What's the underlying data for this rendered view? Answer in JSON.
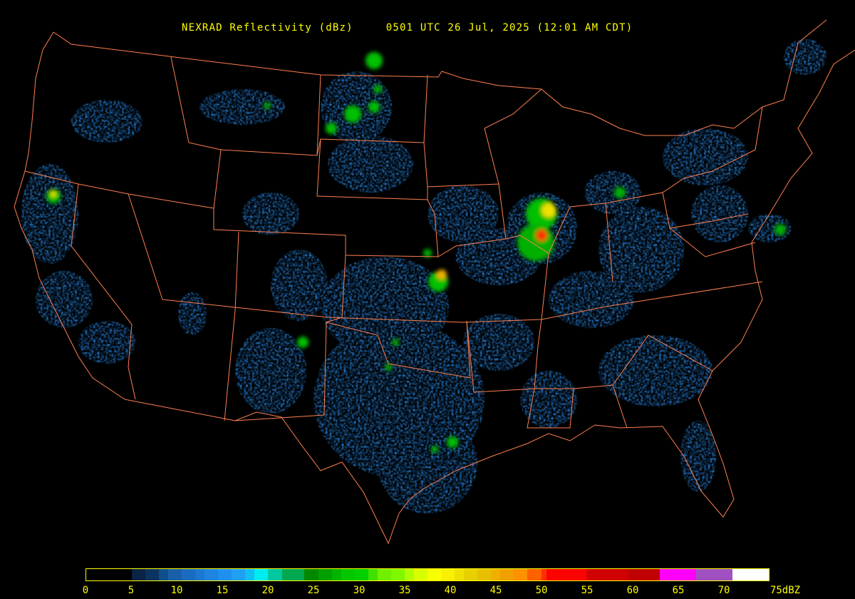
{
  "header": {
    "product": "NEXRAD Reflectivity (dBz)",
    "timestamp": "0501 UTC 26 Jul, 2025 (12:01 AM CDT)"
  },
  "colors": {
    "background": "#000000",
    "boundaries": "#ff7f50",
    "text": "#ffff00"
  },
  "legend": {
    "unit": "dBZ",
    "min": 0,
    "max": 75,
    "tick_labels": [
      "0",
      "5",
      "10",
      "15",
      "20",
      "25",
      "30",
      "35",
      "40",
      "45",
      "50",
      "55",
      "60",
      "65",
      "70",
      "75dBZ"
    ],
    "stops": [
      {
        "dbz": 0,
        "color": "#000000"
      },
      {
        "dbz": 5,
        "color": "#0a2444"
      },
      {
        "dbz": 6.5,
        "color": "#0c3462"
      },
      {
        "dbz": 8,
        "color": "#10508a"
      },
      {
        "dbz": 9,
        "color": "#1860a8"
      },
      {
        "dbz": 10.5,
        "color": "#1a6cc0"
      },
      {
        "dbz": 12,
        "color": "#1c78d0"
      },
      {
        "dbz": 13,
        "color": "#1e84e0"
      },
      {
        "dbz": 14.5,
        "color": "#2090f0"
      },
      {
        "dbz": 16,
        "color": "#20a0f0"
      },
      {
        "dbz": 17.5,
        "color": "#10c0f0"
      },
      {
        "dbz": 18.5,
        "color": "#00ecf0"
      },
      {
        "dbz": 20,
        "color": "#00c8a0"
      },
      {
        "dbz": 21.5,
        "color": "#00a850"
      },
      {
        "dbz": 24,
        "color": "#008800"
      },
      {
        "dbz": 25.5,
        "color": "#00a000"
      },
      {
        "dbz": 27,
        "color": "#00b400"
      },
      {
        "dbz": 28,
        "color": "#00c800"
      },
      {
        "dbz": 29.5,
        "color": "#00d000"
      },
      {
        "dbz": 31,
        "color": "#40e000"
      },
      {
        "dbz": 32,
        "color": "#70f000"
      },
      {
        "dbz": 33.5,
        "color": "#80f800"
      },
      {
        "dbz": 35,
        "color": "#b0ff00"
      },
      {
        "dbz": 36,
        "color": "#d8ff00"
      },
      {
        "dbz": 37.5,
        "color": "#f8ff00"
      },
      {
        "dbz": 39,
        "color": "#f8f000"
      },
      {
        "dbz": 40.5,
        "color": "#f0e000"
      },
      {
        "dbz": 41.5,
        "color": "#e8d000"
      },
      {
        "dbz": 43,
        "color": "#e8c000"
      },
      {
        "dbz": 44.5,
        "color": "#f0b000"
      },
      {
        "dbz": 45.5,
        "color": "#f0a000"
      },
      {
        "dbz": 47,
        "color": "#ff9000"
      },
      {
        "dbz": 48.5,
        "color": "#ff6000"
      },
      {
        "dbz": 50,
        "color": "#ff3000"
      },
      {
        "dbz": 50.6,
        "color": "#ff0000"
      },
      {
        "dbz": 55,
        "color": "#d00000"
      },
      {
        "dbz": 59.5,
        "color": "#c00000"
      },
      {
        "dbz": 63,
        "color": "#ff00ff"
      },
      {
        "dbz": 67,
        "color": "#a050c0"
      },
      {
        "dbz": 71,
        "color": "#ffffff"
      }
    ]
  }
}
